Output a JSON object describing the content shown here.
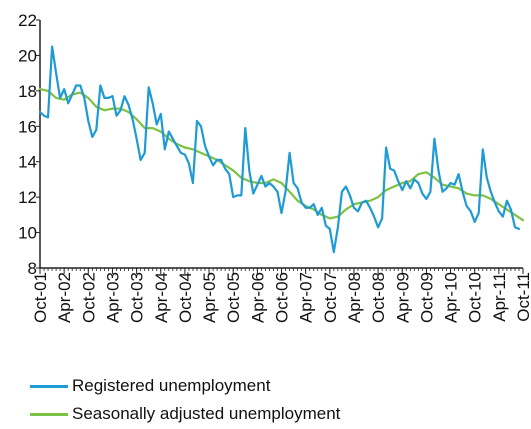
{
  "chart_data": {
    "type": "line",
    "xlim": [
      "2001-10",
      "2011-10"
    ],
    "ylim": [
      8,
      22
    ],
    "y_ticks": [
      8,
      10,
      12,
      14,
      16,
      18,
      20,
      22
    ],
    "x_tick_labels": [
      "Oct-01",
      "Apr-02",
      "Oct-02",
      "Apr-03",
      "Oct-03",
      "Apr-04",
      "Oct-04",
      "Apr-05",
      "Oct-05",
      "Apr-06",
      "Oct-06",
      "Apr-07",
      "Oct-07",
      "Apr-08",
      "Oct-08",
      "Apr-09",
      "Oct-09",
      "Apr-10",
      "Oct-10",
      "Apr-11",
      "Oct-11"
    ],
    "x_tick_dates": [
      "2001-10",
      "2002-04",
      "2002-10",
      "2003-04",
      "2003-10",
      "2004-04",
      "2004-10",
      "2005-04",
      "2005-10",
      "2006-04",
      "2006-10",
      "2007-04",
      "2007-10",
      "2008-04",
      "2008-10",
      "2009-04",
      "2009-10",
      "2010-04",
      "2010-10",
      "2011-04",
      "2011-10"
    ],
    "grid": false,
    "legend_position": "bottom-left",
    "series": [
      {
        "name": "Registered unemployment",
        "color": "#1e9ad6",
        "points": [
          [
            "2001-10",
            16.8
          ],
          [
            "2001-11",
            16.6
          ],
          [
            "2001-12",
            16.5
          ],
          [
            "2002-01",
            20.5
          ],
          [
            "2002-02",
            19.0
          ],
          [
            "2002-03",
            17.6
          ],
          [
            "2002-04",
            18.1
          ],
          [
            "2002-05",
            17.3
          ],
          [
            "2002-06",
            17.8
          ],
          [
            "2002-07",
            18.3
          ],
          [
            "2002-08",
            18.3
          ],
          [
            "2002-09",
            17.6
          ],
          [
            "2002-10",
            16.3
          ],
          [
            "2002-11",
            15.4
          ],
          [
            "2002-12",
            15.8
          ],
          [
            "2003-01",
            18.3
          ],
          [
            "2003-02",
            17.6
          ],
          [
            "2003-03",
            17.6
          ],
          [
            "2003-04",
            17.7
          ],
          [
            "2003-05",
            16.6
          ],
          [
            "2003-06",
            16.9
          ],
          [
            "2003-07",
            17.7
          ],
          [
            "2003-08",
            17.2
          ],
          [
            "2003-09",
            16.4
          ],
          [
            "2003-10",
            15.3
          ],
          [
            "2003-11",
            14.1
          ],
          [
            "2003-12",
            14.5
          ],
          [
            "2004-01",
            18.2
          ],
          [
            "2004-02",
            17.3
          ],
          [
            "2004-03",
            16.1
          ],
          [
            "2004-04",
            16.7
          ],
          [
            "2004-05",
            14.7
          ],
          [
            "2004-06",
            15.7
          ],
          [
            "2004-07",
            15.3
          ],
          [
            "2004-08",
            14.9
          ],
          [
            "2004-09",
            14.5
          ],
          [
            "2004-10",
            14.4
          ],
          [
            "2004-11",
            13.9
          ],
          [
            "2004-12",
            12.8
          ],
          [
            "2005-01",
            16.3
          ],
          [
            "2005-02",
            16.0
          ],
          [
            "2005-03",
            14.9
          ],
          [
            "2005-04",
            14.3
          ],
          [
            "2005-05",
            13.8
          ],
          [
            "2005-06",
            14.1
          ],
          [
            "2005-07",
            14.1
          ],
          [
            "2005-08",
            13.6
          ],
          [
            "2005-09",
            13.3
          ],
          [
            "2005-10",
            12.0
          ],
          [
            "2005-11",
            12.1
          ],
          [
            "2005-12",
            12.1
          ],
          [
            "2006-01",
            15.9
          ],
          [
            "2006-02",
            13.5
          ],
          [
            "2006-03",
            12.2
          ],
          [
            "2006-04",
            12.7
          ],
          [
            "2006-05",
            13.2
          ],
          [
            "2006-06",
            12.6
          ],
          [
            "2006-07",
            12.8
          ],
          [
            "2006-08",
            12.6
          ],
          [
            "2006-09",
            12.3
          ],
          [
            "2006-10",
            11.1
          ],
          [
            "2006-11",
            12.3
          ],
          [
            "2006-12",
            14.5
          ],
          [
            "2007-01",
            12.8
          ],
          [
            "2007-02",
            12.5
          ],
          [
            "2007-03",
            11.7
          ],
          [
            "2007-04",
            11.4
          ],
          [
            "2007-05",
            11.4
          ],
          [
            "2007-06",
            11.6
          ],
          [
            "2007-07",
            11.0
          ],
          [
            "2007-08",
            11.4
          ],
          [
            "2007-09",
            10.4
          ],
          [
            "2007-10",
            10.2
          ],
          [
            "2007-11",
            8.9
          ],
          [
            "2007-12",
            10.3
          ],
          [
            "2008-01",
            12.3
          ],
          [
            "2008-02",
            12.6
          ],
          [
            "2008-03",
            12.1
          ],
          [
            "2008-04",
            11.4
          ],
          [
            "2008-05",
            11.2
          ],
          [
            "2008-06",
            11.7
          ],
          [
            "2008-07",
            11.8
          ],
          [
            "2008-08",
            11.4
          ],
          [
            "2008-09",
            10.9
          ],
          [
            "2008-10",
            10.3
          ],
          [
            "2008-11",
            10.8
          ],
          [
            "2008-12",
            14.8
          ],
          [
            "2009-01",
            13.6
          ],
          [
            "2009-02",
            13.5
          ],
          [
            "2009-03",
            12.9
          ],
          [
            "2009-04",
            12.4
          ],
          [
            "2009-05",
            12.9
          ],
          [
            "2009-06",
            12.5
          ],
          [
            "2009-07",
            13.0
          ],
          [
            "2009-08",
            12.8
          ],
          [
            "2009-09",
            12.2
          ],
          [
            "2009-10",
            11.9
          ],
          [
            "2009-11",
            12.3
          ],
          [
            "2009-12",
            15.3
          ],
          [
            "2010-01",
            13.5
          ],
          [
            "2010-02",
            12.3
          ],
          [
            "2010-03",
            12.5
          ],
          [
            "2010-04",
            12.8
          ],
          [
            "2010-05",
            12.7
          ],
          [
            "2010-06",
            13.3
          ],
          [
            "2010-07",
            12.3
          ],
          [
            "2010-08",
            11.5
          ],
          [
            "2010-09",
            11.2
          ],
          [
            "2010-10",
            10.6
          ],
          [
            "2010-11",
            11.1
          ],
          [
            "2010-12",
            14.7
          ],
          [
            "2011-01",
            13.1
          ],
          [
            "2011-02",
            12.3
          ],
          [
            "2011-03",
            11.7
          ],
          [
            "2011-04",
            11.2
          ],
          [
            "2011-05",
            10.9
          ],
          [
            "2011-06",
            11.8
          ],
          [
            "2011-07",
            11.3
          ],
          [
            "2011-08",
            10.3
          ],
          [
            "2011-09",
            10.2
          ]
        ]
      },
      {
        "name": "Seasonally adjusted unemployment",
        "color": "#7dc242",
        "points": [
          [
            "2001-10",
            18.1
          ],
          [
            "2001-12",
            18.0
          ],
          [
            "2002-02",
            17.6
          ],
          [
            "2002-04",
            17.5
          ],
          [
            "2002-06",
            17.8
          ],
          [
            "2002-08",
            17.9
          ],
          [
            "2002-10",
            17.6
          ],
          [
            "2002-12",
            17.1
          ],
          [
            "2003-02",
            16.9
          ],
          [
            "2003-04",
            17.0
          ],
          [
            "2003-06",
            17.0
          ],
          [
            "2003-08",
            16.8
          ],
          [
            "2003-10",
            16.4
          ],
          [
            "2003-12",
            15.9
          ],
          [
            "2004-02",
            15.9
          ],
          [
            "2004-04",
            15.7
          ],
          [
            "2004-06",
            15.3
          ],
          [
            "2004-08",
            15.0
          ],
          [
            "2004-10",
            14.8
          ],
          [
            "2004-12",
            14.7
          ],
          [
            "2005-02",
            14.5
          ],
          [
            "2005-04",
            14.3
          ],
          [
            "2005-06",
            14.1
          ],
          [
            "2005-08",
            13.8
          ],
          [
            "2005-10",
            13.5
          ],
          [
            "2005-12",
            13.1
          ],
          [
            "2006-02",
            12.9
          ],
          [
            "2006-04",
            12.8
          ],
          [
            "2006-06",
            12.8
          ],
          [
            "2006-08",
            13.0
          ],
          [
            "2006-10",
            12.8
          ],
          [
            "2006-12",
            12.3
          ],
          [
            "2007-02",
            11.8
          ],
          [
            "2007-04",
            11.5
          ],
          [
            "2007-06",
            11.3
          ],
          [
            "2007-08",
            11.0
          ],
          [
            "2007-10",
            10.8
          ],
          [
            "2007-12",
            10.9
          ],
          [
            "2008-02",
            11.3
          ],
          [
            "2008-04",
            11.6
          ],
          [
            "2008-06",
            11.7
          ],
          [
            "2008-08",
            11.8
          ],
          [
            "2008-10",
            12.0
          ],
          [
            "2008-12",
            12.4
          ],
          [
            "2009-02",
            12.6
          ],
          [
            "2009-04",
            12.8
          ],
          [
            "2009-06",
            12.9
          ],
          [
            "2009-08",
            13.3
          ],
          [
            "2009-10",
            13.4
          ],
          [
            "2009-12",
            13.1
          ],
          [
            "2010-02",
            12.7
          ],
          [
            "2010-04",
            12.6
          ],
          [
            "2010-06",
            12.5
          ],
          [
            "2010-08",
            12.2
          ],
          [
            "2010-10",
            12.1
          ],
          [
            "2010-12",
            12.1
          ],
          [
            "2011-02",
            11.9
          ],
          [
            "2011-04",
            11.6
          ],
          [
            "2011-06",
            11.3
          ],
          [
            "2011-08",
            11.0
          ],
          [
            "2011-10",
            10.7
          ]
        ]
      }
    ]
  }
}
